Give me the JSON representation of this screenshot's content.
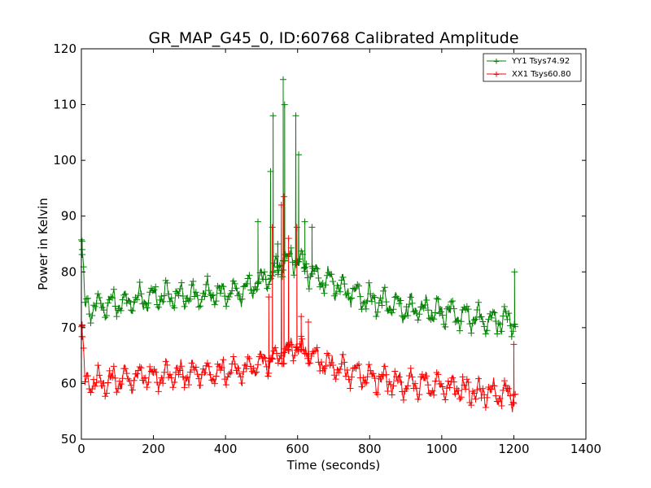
{
  "chart_data": {
    "type": "line",
    "title": "GR_MAP_G45_0, ID:60768 Calibrated Amplitude",
    "xlabel": "Time (seconds)",
    "ylabel": "Power in Kelvin",
    "xlim": [
      0,
      1400
    ],
    "ylim": [
      50,
      120
    ],
    "xticks": [
      0,
      200,
      400,
      600,
      800,
      1000,
      1200,
      1400
    ],
    "yticks": [
      50,
      60,
      70,
      80,
      90,
      100,
      110,
      120
    ],
    "grid": false,
    "legend_position": "top-right",
    "marker": "+",
    "series": [
      {
        "name": "YY1 Tsys74.92",
        "color": "#008000",
        "x_start": 0,
        "x_end": 1205,
        "spike_x": [
          2,
          490,
          525,
          532,
          545,
          560,
          564,
          595,
          603,
          620,
          640,
          1202
        ],
        "spike_y": [
          85.5,
          89,
          98,
          108,
          85,
          114.5,
          110,
          108,
          101,
          89,
          88,
          80
        ],
        "envelope_x": [
          0,
          10,
          100,
          220,
          350,
          450,
          520,
          560,
          600,
          650,
          700,
          800,
          900,
          1000,
          1100,
          1200,
          1205
        ],
        "envelope_y": [
          85.5,
          73.5,
          74.5,
          75.5,
          76,
          76.5,
          79,
          82,
          82,
          79,
          78,
          75,
          73.5,
          73,
          71.5,
          71,
          70
        ]
      },
      {
        "name": "XX1 Tsys60.80",
        "color": "#ff0000",
        "x_start": 0,
        "x_end": 1205,
        "spike_x": [
          2,
          520,
          530,
          555,
          562,
          575,
          598,
          610,
          630,
          1200
        ],
        "spike_y": [
          70.5,
          75.5,
          88,
          92,
          93.5,
          86,
          88,
          72,
          71,
          67
        ],
        "envelope_x": [
          0,
          10,
          100,
          220,
          350,
          450,
          520,
          560,
          600,
          650,
          700,
          800,
          900,
          1000,
          1100,
          1200,
          1205
        ],
        "envelope_y": [
          70.5,
          60,
          60.5,
          61.5,
          62,
          62.5,
          64,
          65.5,
          66.5,
          64.5,
          63,
          61,
          60,
          59.5,
          58.5,
          58,
          57.5
        ]
      }
    ]
  }
}
